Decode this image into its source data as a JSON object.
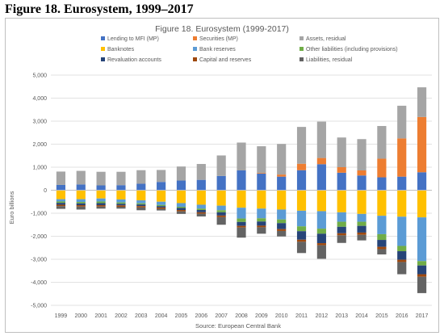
{
  "document": {
    "heading": "Figure 18. Eurosystem, 1999–2017"
  },
  "chart_data": {
    "type": "bar",
    "stacked": true,
    "title": "Figure 18. Eurosystem (1999-2017)",
    "source": "Source: European Central Bank",
    "ylabel": "Euro billions",
    "xlabel": "",
    "ylim": [
      -5000,
      5000
    ],
    "ytick_step": 1000,
    "yticks": [
      "-5,000",
      "-4,000",
      "-3,000",
      "-2,000",
      "-1,000",
      "0",
      "1,000",
      "2,000",
      "3,000",
      "4,000",
      "5,000"
    ],
    "grid": true,
    "legend_position": "top",
    "categories": [
      "1999",
      "2000",
      "2001",
      "2002",
      "2003",
      "2004",
      "2005",
      "2006",
      "2007",
      "2008",
      "2009",
      "2010",
      "2011",
      "2012",
      "2013",
      "2014",
      "2015",
      "2016",
      "2017"
    ],
    "series": [
      {
        "name": "Lending to MFI (MP)",
        "color": "#4472c4",
        "side": "assets",
        "values": [
          230,
          250,
          210,
          220,
          280,
          360,
          420,
          450,
          620,
          860,
          720,
          590,
          870,
          1130,
          760,
          640,
          560,
          590,
          780
        ]
      },
      {
        "name": "Securities (MP)",
        "color": "#ed7d31",
        "side": "assets",
        "values": [
          0,
          0,
          0,
          0,
          0,
          0,
          0,
          0,
          0,
          0,
          30,
          90,
          280,
          270,
          240,
          220,
          810,
          1660,
          2400
        ]
      },
      {
        "name": "Assets, residual",
        "color": "#a5a5a5",
        "side": "assets",
        "values": [
          580,
          590,
          590,
          580,
          590,
          520,
          610,
          690,
          890,
          1210,
          1160,
          1330,
          1600,
          1580,
          1290,
          1360,
          1420,
          1420,
          1290
        ]
      },
      {
        "name": "Banknotes",
        "color": "#ffc000",
        "side": "liabilities",
        "values": [
          -390,
          -390,
          -360,
          -400,
          -440,
          -500,
          -560,
          -630,
          -670,
          -760,
          -800,
          -840,
          -890,
          -910,
          -960,
          -1030,
          -1110,
          -1150,
          -1180
        ]
      },
      {
        "name": "Bank reserves",
        "color": "#5b9bd5",
        "side": "liabilities",
        "values": [
          -100,
          -120,
          -130,
          -130,
          -130,
          -140,
          -160,
          -170,
          -200,
          -470,
          -420,
          -430,
          -680,
          -760,
          -410,
          -340,
          -800,
          -1270,
          -1900
        ]
      },
      {
        "name": "Other liabilities (including provisions)",
        "color": "#70ad47",
        "side": "liabilities",
        "values": [
          -60,
          -60,
          -70,
          -60,
          -50,
          -50,
          -50,
          -60,
          -90,
          -150,
          -140,
          -160,
          -210,
          -220,
          -220,
          -180,
          -250,
          -230,
          -190
        ]
      },
      {
        "name": "Revaluation accounts",
        "color": "#264478",
        "side": "liabilities",
        "values": [
          -80,
          -80,
          -90,
          -70,
          -70,
          -60,
          -90,
          -100,
          -140,
          -170,
          -180,
          -260,
          -370,
          -410,
          -280,
          -290,
          -300,
          -370,
          -380
        ]
      },
      {
        "name": "Capital and reserves",
        "color": "#9e480e",
        "side": "liabilities",
        "values": [
          -60,
          -60,
          -60,
          -60,
          -60,
          -60,
          -60,
          -60,
          -70,
          -70,
          -70,
          -80,
          -90,
          -90,
          -90,
          -100,
          -100,
          -100,
          -110
        ]
      },
      {
        "name": "Liabilities, residual",
        "color": "#636363",
        "side": "liabilities",
        "values": [
          -120,
          -130,
          -90,
          -80,
          -120,
          -70,
          -110,
          -120,
          -330,
          -440,
          -280,
          -240,
          -490,
          -590,
          -330,
          -240,
          -230,
          -530,
          -710
        ]
      }
    ]
  }
}
